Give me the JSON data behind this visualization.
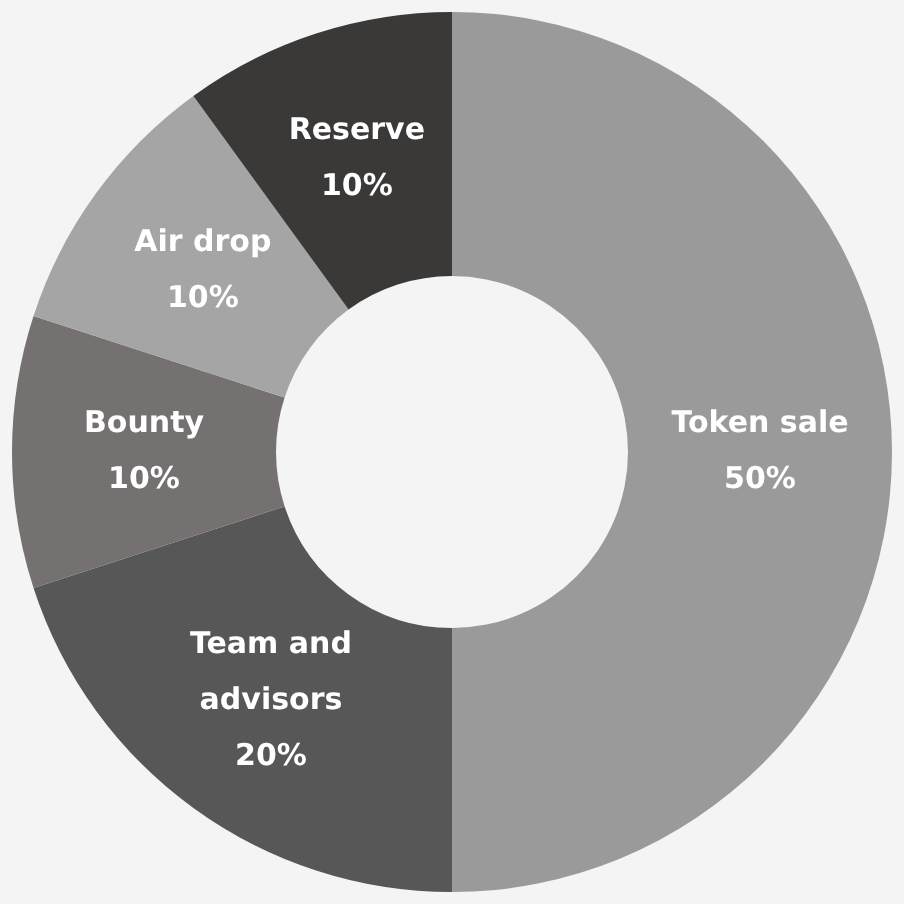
{
  "chart_data": {
    "type": "donut",
    "categories": [
      "Token sale",
      "Team and advisors",
      "Bounty",
      "Air drop",
      "Reserve"
    ],
    "values": [
      50,
      20,
      10,
      10,
      10
    ],
    "value_labels": [
      "50%",
      "20%",
      "10%",
      "10%",
      "10%"
    ],
    "colors": [
      "#9a9a9a",
      "#575757",
      "#757171",
      "#a5a5a5",
      "#3b3838"
    ]
  }
}
